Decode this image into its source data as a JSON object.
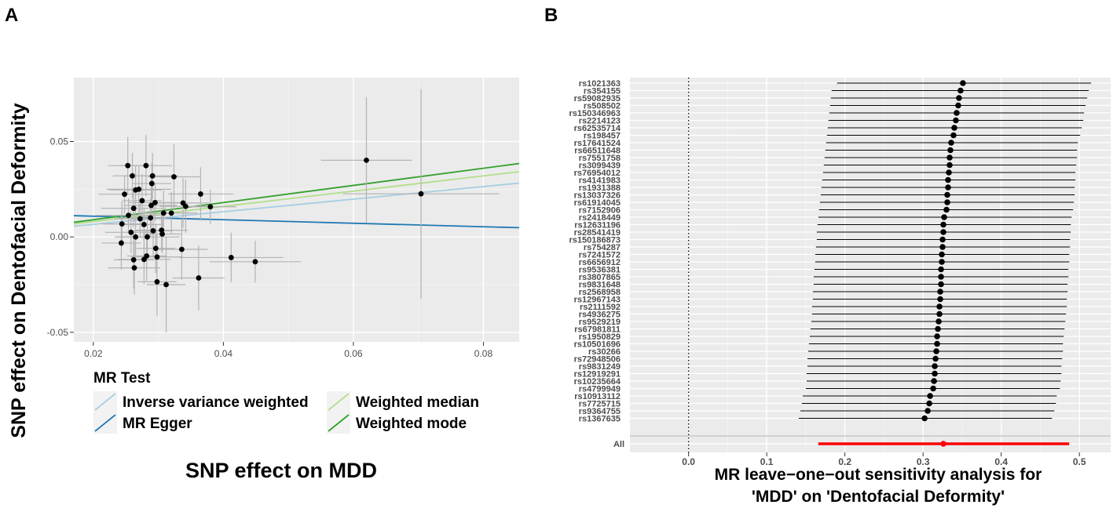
{
  "panels": {
    "a_label": "A",
    "b_label": "B"
  },
  "chart_data": [
    {
      "type": "scatter",
      "panel": "A",
      "title": "",
      "xlabel": "SNP effect on MDD",
      "ylabel": "SNP effect on Dentofacial Deformity",
      "xlim": [
        0.017,
        0.0855
      ],
      "ylim": [
        -0.055,
        0.0835
      ],
      "x_ticks": [
        0.02,
        0.04,
        0.06,
        0.08
      ],
      "x_tick_labels": [
        "0.02",
        "0.04",
        "0.06",
        "0.08"
      ],
      "y_ticks": [
        -0.05,
        0.0,
        0.05
      ],
      "y_tick_labels": [
        "-0.05",
        "0.00",
        "0.05"
      ],
      "grid": true,
      "points": [
        {
          "x": 0.0244,
          "y": 0.0068,
          "xerr": 0.003,
          "yerr": 0.012
        },
        {
          "x": 0.0248,
          "y": 0.0224,
          "xerr": 0.004,
          "yerr": 0.01
        },
        {
          "x": 0.0253,
          "y": 0.0374,
          "xerr": 0.003,
          "yerr": 0.015
        },
        {
          "x": 0.0254,
          "y": 0.0113,
          "xerr": 0.005,
          "yerr": 0.009
        },
        {
          "x": 0.0243,
          "y": -0.0032,
          "xerr": 0.003,
          "yerr": 0.014
        },
        {
          "x": 0.0258,
          "y": 0.0024,
          "xerr": 0.004,
          "yerr": 0.011
        },
        {
          "x": 0.026,
          "y": 0.032,
          "xerr": 0.003,
          "yerr": 0.012
        },
        {
          "x": 0.0262,
          "y": 0.015,
          "xerr": 0.005,
          "yerr": 0.01
        },
        {
          "x": 0.0262,
          "y": -0.012,
          "xerr": 0.003,
          "yerr": 0.015
        },
        {
          "x": 0.0263,
          "y": -0.0162,
          "xerr": 0.004,
          "yerr": 0.014
        },
        {
          "x": 0.0265,
          "y": 0.0246,
          "xerr": 0.004,
          "yerr": 0.013
        },
        {
          "x": 0.0265,
          "y": 0.0,
          "xerr": 0.003,
          "yerr": 0.011
        },
        {
          "x": 0.027,
          "y": 0.025,
          "xerr": 0.005,
          "yerr": 0.012
        },
        {
          "x": 0.0272,
          "y": 0.0095,
          "xerr": 0.004,
          "yerr": 0.01
        },
        {
          "x": 0.0275,
          "y": 0.019,
          "xerr": 0.003,
          "yerr": 0.014
        },
        {
          "x": 0.0278,
          "y": -0.0118,
          "xerr": 0.004,
          "yerr": 0.013
        },
        {
          "x": 0.0278,
          "y": 0.0065,
          "xerr": 0.003,
          "yerr": 0.009
        },
        {
          "x": 0.0281,
          "y": 0.0374,
          "xerr": 0.004,
          "yerr": 0.016
        },
        {
          "x": 0.0282,
          "y": -0.01,
          "xerr": 0.003,
          "yerr": 0.013
        },
        {
          "x": 0.0283,
          "y": 0.0,
          "xerr": 0.005,
          "yerr": 0.012
        },
        {
          "x": 0.0288,
          "y": 0.01,
          "xerr": 0.003,
          "yerr": 0.01
        },
        {
          "x": 0.0289,
          "y": 0.0165,
          "xerr": 0.004,
          "yerr": 0.015
        },
        {
          "x": 0.029,
          "y": 0.028,
          "xerr": 0.003,
          "yerr": 0.011
        },
        {
          "x": 0.0291,
          "y": 0.032,
          "xerr": 0.004,
          "yerr": 0.012
        },
        {
          "x": 0.0292,
          "y": 0.0032,
          "xerr": 0.003,
          "yerr": 0.014
        },
        {
          "x": 0.0295,
          "y": 0.018,
          "xerr": 0.004,
          "yerr": 0.01
        },
        {
          "x": 0.0296,
          "y": -0.006,
          "xerr": 0.003,
          "yerr": 0.013
        },
        {
          "x": 0.0298,
          "y": -0.0105,
          "xerr": 0.004,
          "yerr": 0.012
        },
        {
          "x": 0.0298,
          "y": -0.0235,
          "xerr": 0.003,
          "yerr": 0.018
        },
        {
          "x": 0.0305,
          "y": 0.0035,
          "xerr": 0.004,
          "yerr": 0.011
        },
        {
          "x": 0.0306,
          "y": 0.0015,
          "xerr": 0.003,
          "yerr": 0.01
        },
        {
          "x": 0.0308,
          "y": 0.0125,
          "xerr": 0.004,
          "yerr": 0.012
        },
        {
          "x": 0.0312,
          "y": -0.025,
          "xerr": 0.003,
          "yerr": 0.025
        },
        {
          "x": 0.032,
          "y": 0.0125,
          "xerr": 0.004,
          "yerr": 0.011
        },
        {
          "x": 0.0324,
          "y": 0.0315,
          "xerr": 0.004,
          "yerr": 0.017
        },
        {
          "x": 0.0336,
          "y": -0.0065,
          "xerr": 0.004,
          "yerr": 0.016
        },
        {
          "x": 0.0338,
          "y": 0.0178,
          "xerr": 0.004,
          "yerr": 0.013
        },
        {
          "x": 0.0342,
          "y": 0.016,
          "xerr": 0.004,
          "yerr": 0.014
        },
        {
          "x": 0.0365,
          "y": 0.0225,
          "xerr": 0.005,
          "yerr": 0.014
        },
        {
          "x": 0.0362,
          "y": -0.0215,
          "xerr": 0.004,
          "yerr": 0.017
        },
        {
          "x": 0.038,
          "y": 0.0158,
          "xerr": 0.004,
          "yerr": 0.009
        },
        {
          "x": 0.0412,
          "y": -0.0108,
          "xerr": 0.008,
          "yerr": 0.013
        },
        {
          "x": 0.0449,
          "y": -0.013,
          "xerr": 0.007,
          "yerr": 0.011
        },
        {
          "x": 0.062,
          "y": 0.0402,
          "xerr": 0.007,
          "yerr": 0.033
        },
        {
          "x": 0.0704,
          "y": 0.0226,
          "xerr": 0.012,
          "yerr": 0.055
        }
      ],
      "legend": {
        "title": "MR Test",
        "placement": "bottom",
        "entries": [
          {
            "label": "Inverse variance weighted",
            "color": "#a6cee3"
          },
          {
            "label": "MR Egger",
            "color": "#1f78b4"
          },
          {
            "label": "Weighted median",
            "color": "#b2df8a"
          },
          {
            "label": "Weighted mode",
            "color": "#33a02c"
          }
        ]
      },
      "series": [
        {
          "name": "Inverse variance weighted",
          "color": "#a6cee3",
          "intercept": 0.0,
          "slope": 0.33
        },
        {
          "name": "MR Egger",
          "color": "#1f78b4",
          "intercept": 0.0127,
          "slope": -0.092
        },
        {
          "name": "Weighted median",
          "color": "#b2df8a",
          "intercept": 0.0,
          "slope": 0.4
        },
        {
          "name": "Weighted mode",
          "color": "#33a02c",
          "intercept": 0.0,
          "slope": 0.45
        }
      ]
    },
    {
      "type": "forest",
      "panel": "B",
      "title": "",
      "xlabel_line1": "MR leave−one−out sensitivity analysis for",
      "xlabel_line2": "'MDD' on 'Dentofacial Deformity'",
      "xlim": [
        -0.075,
        0.54
      ],
      "x_ticks": [
        0.0,
        0.1,
        0.2,
        0.3,
        0.4,
        0.5
      ],
      "x_tick_labels": [
        "0.0",
        "0.1",
        "0.2",
        "0.3",
        "0.4",
        "0.5"
      ],
      "reference_line": 0.0,
      "grid": true,
      "snps": [
        {
          "label": "rs1021363",
          "est": 0.351,
          "lo": 0.19,
          "hi": 0.515
        },
        {
          "label": "rs354155",
          "est": 0.348,
          "lo": 0.183,
          "hi": 0.512
        },
        {
          "label": "rs59082935",
          "est": 0.346,
          "lo": 0.182,
          "hi": 0.51
        },
        {
          "label": "rs508502",
          "est": 0.345,
          "lo": 0.181,
          "hi": 0.508
        },
        {
          "label": "rs150346963",
          "est": 0.343,
          "lo": 0.18,
          "hi": 0.506
        },
        {
          "label": "rs2214123",
          "est": 0.342,
          "lo": 0.179,
          "hi": 0.505
        },
        {
          "label": "rs62535714",
          "est": 0.34,
          "lo": 0.178,
          "hi": 0.503
        },
        {
          "label": "rs198457",
          "est": 0.339,
          "lo": 0.177,
          "hi": 0.501
        },
        {
          "label": "rs17641524",
          "est": 0.336,
          "lo": 0.176,
          "hi": 0.498
        },
        {
          "label": "rs66511648",
          "est": 0.335,
          "lo": 0.175,
          "hi": 0.497
        },
        {
          "label": "rs7551758",
          "est": 0.334,
          "lo": 0.174,
          "hi": 0.497
        },
        {
          "label": "rs3099439",
          "est": 0.334,
          "lo": 0.173,
          "hi": 0.496
        },
        {
          "label": "rs76954012",
          "est": 0.333,
          "lo": 0.172,
          "hi": 0.495
        },
        {
          "label": "rs4141983",
          "est": 0.332,
          "lo": 0.171,
          "hi": 0.495
        },
        {
          "label": "rs1931388",
          "est": 0.332,
          "lo": 0.17,
          "hi": 0.494
        },
        {
          "label": "rs13037326",
          "est": 0.331,
          "lo": 0.169,
          "hi": 0.494
        },
        {
          "label": "rs61914045",
          "est": 0.331,
          "lo": 0.168,
          "hi": 0.493
        },
        {
          "label": "rs7152906",
          "est": 0.33,
          "lo": 0.167,
          "hi": 0.492
        },
        {
          "label": "rs2418449",
          "est": 0.327,
          "lo": 0.166,
          "hi": 0.49
        },
        {
          "label": "rs12631196",
          "est": 0.326,
          "lo": 0.165,
          "hi": 0.489
        },
        {
          "label": "rs28541419",
          "est": 0.326,
          "lo": 0.164,
          "hi": 0.489
        },
        {
          "label": "rs150186873",
          "est": 0.325,
          "lo": 0.164,
          "hi": 0.488
        },
        {
          "label": "rs754287",
          "est": 0.325,
          "lo": 0.163,
          "hi": 0.488
        },
        {
          "label": "rs7241572",
          "est": 0.324,
          "lo": 0.162,
          "hi": 0.487
        },
        {
          "label": "rs6656912",
          "est": 0.324,
          "lo": 0.162,
          "hi": 0.487
        },
        {
          "label": "rs9536381",
          "est": 0.323,
          "lo": 0.161,
          "hi": 0.486
        },
        {
          "label": "rs3807865",
          "est": 0.323,
          "lo": 0.16,
          "hi": 0.486
        },
        {
          "label": "rs9831648",
          "est": 0.323,
          "lo": 0.16,
          "hi": 0.485
        },
        {
          "label": "rs2568958",
          "est": 0.322,
          "lo": 0.159,
          "hi": 0.485
        },
        {
          "label": "rs12967143",
          "est": 0.322,
          "lo": 0.159,
          "hi": 0.484
        },
        {
          "label": "rs2111592",
          "est": 0.321,
          "lo": 0.158,
          "hi": 0.484
        },
        {
          "label": "rs4936275",
          "est": 0.321,
          "lo": 0.158,
          "hi": 0.483
        },
        {
          "label": "rs9529219",
          "est": 0.32,
          "lo": 0.157,
          "hi": 0.482
        },
        {
          "label": "rs67981811",
          "est": 0.319,
          "lo": 0.156,
          "hi": 0.481
        },
        {
          "label": "rs1950829",
          "est": 0.318,
          "lo": 0.155,
          "hi": 0.48
        },
        {
          "label": "rs10501696",
          "est": 0.318,
          "lo": 0.154,
          "hi": 0.479
        },
        {
          "label": "rs30266",
          "est": 0.317,
          "lo": 0.153,
          "hi": 0.479
        },
        {
          "label": "rs72948506",
          "est": 0.316,
          "lo": 0.152,
          "hi": 0.478
        },
        {
          "label": "rs9831249",
          "est": 0.315,
          "lo": 0.152,
          "hi": 0.477
        },
        {
          "label": "rs12919291",
          "est": 0.315,
          "lo": 0.151,
          "hi": 0.477
        },
        {
          "label": "rs10235664",
          "est": 0.314,
          "lo": 0.151,
          "hi": 0.476
        },
        {
          "label": "rs4799949",
          "est": 0.313,
          "lo": 0.15,
          "hi": 0.475
        },
        {
          "label": "rs10913112",
          "est": 0.309,
          "lo": 0.146,
          "hi": 0.471
        },
        {
          "label": "rs7725715",
          "est": 0.308,
          "lo": 0.145,
          "hi": 0.47
        },
        {
          "label": "rs9364755",
          "est": 0.306,
          "lo": 0.143,
          "hi": 0.468
        },
        {
          "label": "rs1367635",
          "est": 0.302,
          "lo": 0.141,
          "hi": 0.465
        }
      ],
      "overall": {
        "label": "All",
        "est": 0.326,
        "lo": 0.166,
        "hi": 0.487,
        "color": "#ff0000"
      }
    }
  ]
}
